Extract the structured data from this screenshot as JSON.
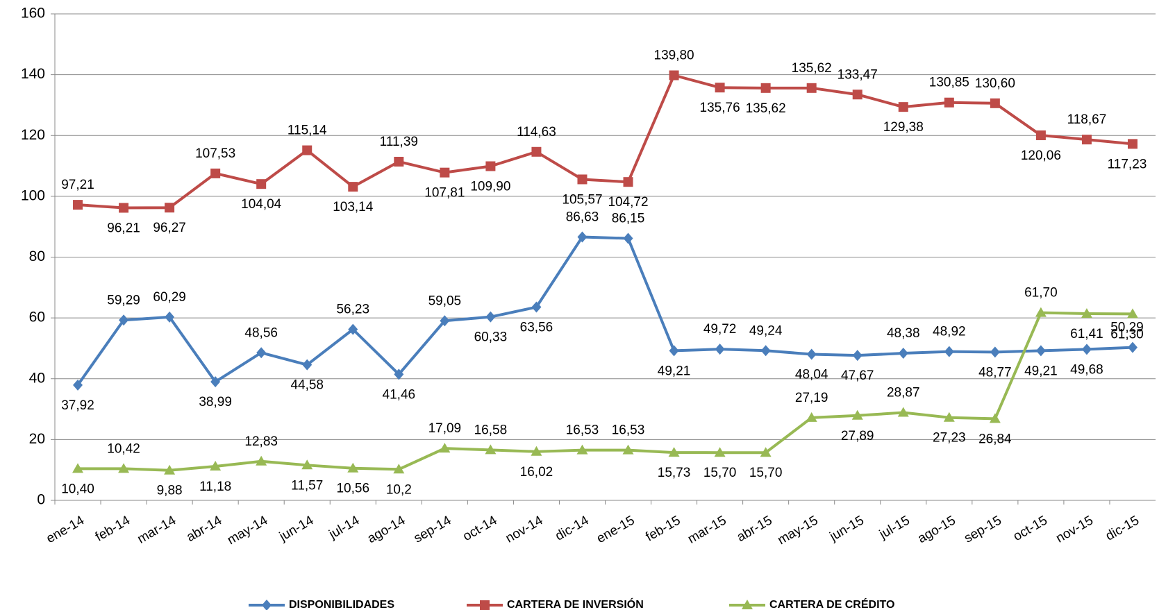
{
  "chart_data": {
    "type": "line",
    "categories": [
      "ene-14",
      "feb-14",
      "mar-14",
      "abr-14",
      "may-14",
      "jun-14",
      "jul-14",
      "ago-14",
      "sep-14",
      "oct-14",
      "nov-14",
      "dic-14",
      "ene-15",
      "feb-15",
      "mar-15",
      "abr-15",
      "may-15",
      "jun-15",
      "jul-15",
      "ago-15",
      "sep-15",
      "oct-15",
      "nov-15",
      "dic-15"
    ],
    "series": [
      {
        "name": "DISPONIBILIDADES",
        "color": "#4a7ebb",
        "marker": "diamond",
        "values": [
          37.92,
          59.29,
          60.29,
          38.99,
          48.56,
          44.58,
          56.23,
          41.46,
          59.05,
          60.33,
          63.56,
          86.63,
          86.15,
          49.21,
          49.72,
          49.24,
          48.04,
          47.67,
          48.38,
          48.92,
          48.77,
          49.21,
          49.68,
          50.29
        ],
        "value_labels": [
          "37,92",
          "59,29",
          "60,29",
          "38,99",
          "48,56",
          "44,58",
          "56,23",
          "41,46",
          "59,05",
          "60,33",
          "63,56",
          "86,63",
          "86,15",
          "49,21",
          "49,72",
          "49,24",
          "48,04",
          "47,67",
          "48,38",
          "48,92",
          "48,77",
          "49,21",
          "49,68",
          "50,29"
        ]
      },
      {
        "name": "CARTERA DE INVERSIÓN",
        "color": "#be4b48",
        "marker": "square",
        "values": [
          97.21,
          96.21,
          96.27,
          107.53,
          104.04,
          115.14,
          103.14,
          111.39,
          107.81,
          109.9,
          114.63,
          105.57,
          104.72,
          139.8,
          135.76,
          135.62,
          135.62,
          133.47,
          129.38,
          130.85,
          130.6,
          120.06,
          118.67,
          117.23
        ],
        "value_labels": [
          "97,21",
          "96,21",
          "96,27",
          "107,53",
          "104,04",
          "115,14",
          "103,14",
          "111,39",
          "107,81",
          "109,90",
          "114,63",
          "105,57",
          "104,72",
          "139,80",
          "135,76",
          "135,62",
          "135,62",
          "133,47",
          "129,38",
          "130,85",
          "130,60",
          "120,06",
          "118,67",
          "117,23"
        ]
      },
      {
        "name": "CARTERA DE CRÉDITO",
        "color": "#98b954",
        "marker": "triangle",
        "values": [
          10.4,
          10.42,
          9.88,
          11.18,
          12.83,
          11.57,
          10.56,
          10.2,
          17.09,
          16.58,
          16.02,
          16.53,
          16.53,
          15.73,
          15.7,
          15.7,
          27.19,
          27.89,
          28.87,
          27.23,
          26.84,
          61.7,
          61.41,
          61.3
        ],
        "value_labels": [
          "10,40",
          "10,42",
          "9,88",
          "11,18",
          "12,83",
          "11,57",
          "10,56",
          "10,2",
          "17,09",
          "16,58",
          "16,02",
          "16,53",
          "16,53",
          "15,73",
          "15,70",
          "15,70",
          "27,19",
          "27,89",
          "28,87",
          "27,23",
          "26,84",
          "61,70",
          "61,41",
          "61,30"
        ]
      }
    ],
    "ylim": [
      0,
      160
    ],
    "yticks": [
      0,
      20,
      40,
      60,
      80,
      100,
      120,
      140,
      160
    ],
    "grid": true,
    "legend": "bottom"
  }
}
